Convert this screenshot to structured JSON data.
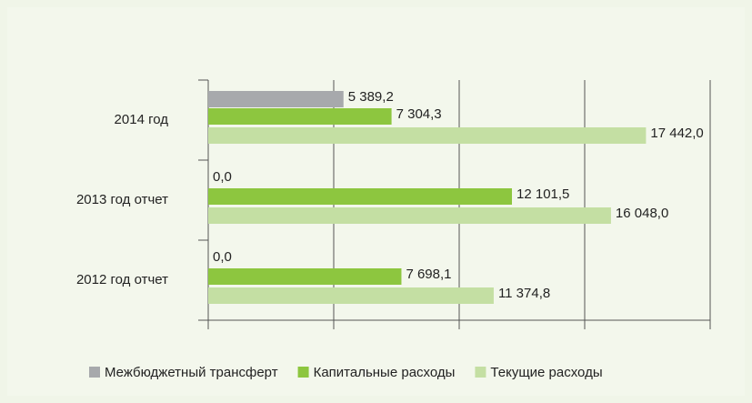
{
  "chart_data": {
    "type": "barh",
    "categories": [
      "2012 год отчет",
      "2013 год отчет",
      "2014 год"
    ],
    "series": [
      {
        "name": "Межбюджетный трансферт",
        "color": "#a7a9ac",
        "values": [
          0,
          0,
          5389.2
        ],
        "value_labels": [
          "0,0",
          "0,0",
          "5 389,2"
        ]
      },
      {
        "name": "Капитальные расходы",
        "color": "#8dc63f",
        "values": [
          7698.1,
          12101.5,
          7304.3
        ],
        "value_labels": [
          "7 698,1",
          "12 101,5",
          "7 304,3"
        ]
      },
      {
        "name": "Текущие расходы",
        "color": "#c4dfa3",
        "values": [
          11374.8,
          16048.0,
          17442.0
        ],
        "value_labels": [
          "11 374,8",
          "16 048,0",
          "17 442,0"
        ]
      }
    ],
    "xlim": [
      0,
      20000
    ],
    "xticks": [
      0,
      5000,
      10000,
      15000,
      20000
    ],
    "grid": true,
    "legend": "bottom"
  }
}
